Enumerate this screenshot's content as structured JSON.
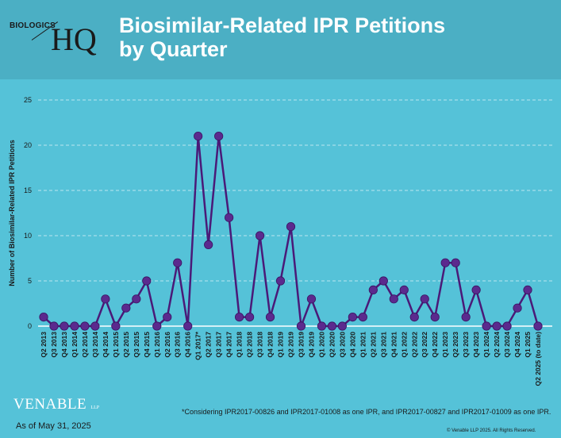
{
  "header": {
    "logo_brand": "BIOLOGICS",
    "logo_mark": "HQ",
    "title_line1": "Biosimilar-Related IPR Petitions",
    "title_line2": "by Quarter"
  },
  "footer": {
    "firm": "VENABLE",
    "firm_suffix": "LLP",
    "as_of": "As of May 31, 2025",
    "footnote": "*Considering IPR2017-00826 and IPR2017-01008 as one IPR, and IPR2017-00827 and IPR2017-01009 as one IPR.",
    "copyright": "© Venable LLP 2025. All Rights Reserved."
  },
  "colors": {
    "background": "#55c2d8",
    "header_band": "#4bafc4",
    "series_line": "#4a1a78",
    "marker": "#5b2a8e",
    "axis_text": "#1a1a1a",
    "title_text": "#ffffff"
  },
  "chart_data": {
    "type": "line",
    "title": "Biosimilar-Related IPR Petitions by Quarter",
    "ylabel": "Number of Biosimilar-Related IPR Petitions",
    "xlabel": "",
    "ylim": [
      0,
      25
    ],
    "yticks": [
      0,
      5,
      10,
      15,
      20,
      25
    ],
    "grid": true,
    "legend": "none",
    "categories": [
      "Q2 2013",
      "Q3 2013",
      "Q4 2013",
      "Q1 2014",
      "Q2 2014",
      "Q3 2014",
      "Q4 2014",
      "Q1 2015",
      "Q2 2015",
      "Q3 2015",
      "Q4 2015",
      "Q1 2016",
      "Q2 2016",
      "Q3 2016",
      "Q4 2016",
      "Q1 2017*",
      "Q2 2017",
      "Q3 2017",
      "Q4 2017",
      "Q1 2018",
      "Q2 2018",
      "Q3 2018",
      "Q4 2018",
      "Q1 2019",
      "Q2 2019",
      "Q3 2019",
      "Q4 2019",
      "Q1 2020",
      "Q2 2020",
      "Q3 2020",
      "Q4 2020",
      "Q1 2021",
      "Q2 2021",
      "Q3 2021",
      "Q4 2021",
      "Q1 2022",
      "Q2 2022",
      "Q3 2022",
      "Q4 2022",
      "Q1 2023",
      "Q2 2023",
      "Q3 2023",
      "Q4 2023",
      "Q1 2024",
      "Q2 2024",
      "Q3 2024",
      "Q4 2024",
      "Q1 2025",
      "Q2 2025 (to date)"
    ],
    "values": [
      1,
      0,
      0,
      0,
      0,
      0,
      3,
      0,
      2,
      3,
      5,
      0,
      1,
      7,
      0,
      21,
      9,
      21,
      12,
      1,
      1,
      10,
      1,
      5,
      11,
      0,
      3,
      0,
      0,
      0,
      1,
      1,
      4,
      5,
      3,
      4,
      1,
      3,
      1,
      7,
      7,
      1,
      4,
      0,
      0,
      0,
      2,
      4,
      0
    ]
  }
}
